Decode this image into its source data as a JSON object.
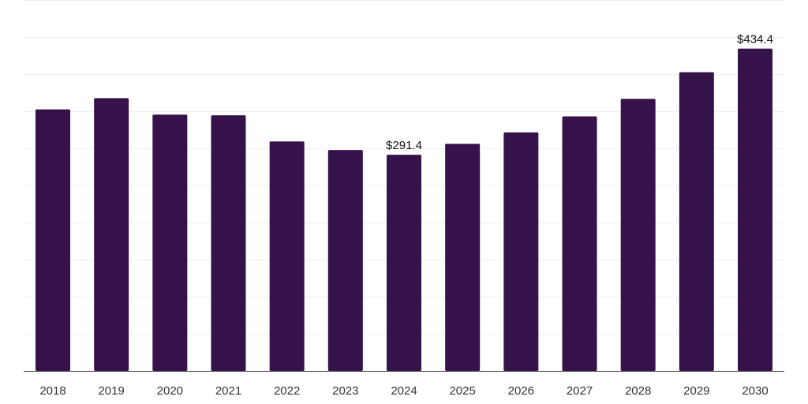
{
  "chart_data": {
    "type": "bar",
    "title": "",
    "xlabel": "",
    "ylabel": "",
    "categories": [
      "2018",
      "2019",
      "2020",
      "2021",
      "2022",
      "2023",
      "2024",
      "2025",
      "2026",
      "2027",
      "2028",
      "2029",
      "2030"
    ],
    "values": [
      352.5,
      367.7,
      345.5,
      344.6,
      309.3,
      297.8,
      291.4,
      306.1,
      321.5,
      343.1,
      366.7,
      402.6,
      434.4
    ],
    "data_labels": [
      {
        "index": 6,
        "text": "$291.4"
      },
      {
        "index": 12,
        "text": "$434.4"
      }
    ],
    "ylim": [
      0,
      500
    ],
    "y_grid_step": 50,
    "grid": true,
    "legend": "none",
    "colors": {
      "bar": "#36124a",
      "grid": "#efefef",
      "axis": "#333333",
      "text": "#333333"
    }
  }
}
